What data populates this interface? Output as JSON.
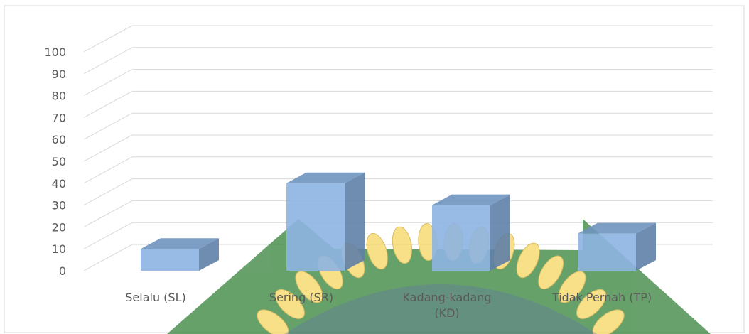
{
  "chart_data": {
    "type": "bar",
    "style": "3d-column",
    "categories": [
      "Selalu (SL)",
      "Sering (SR)",
      "Kadang-kadang (KD)",
      "Tidak Pernah (TP)"
    ],
    "category_lines": [
      [
        "Selalu (SL)"
      ],
      [
        "Sering (SR)"
      ],
      [
        "Kadang-kadang",
        "(KD)"
      ],
      [
        "Tidak Pernah (TP)"
      ]
    ],
    "values": [
      10,
      40,
      30,
      17
    ],
    "ylim": [
      0,
      100
    ],
    "yticks": [
      0,
      10,
      20,
      30,
      40,
      50,
      60,
      70,
      80,
      90,
      100
    ],
    "title": "",
    "xlabel": "",
    "ylabel": "",
    "grid": true,
    "legend": "none",
    "colors": {
      "bar_front": "#8db4e2",
      "bar_top": "#6f93bf",
      "bar_side": "#5f80a8",
      "gridline": "#d9d9d9",
      "text": "#595959",
      "border": "#d9d9d9",
      "watermark_green": "#2e7d32",
      "watermark_yellow": "#f5d55a",
      "watermark_blue": "#1f3c88"
    },
    "watermark": "university-emblem"
  }
}
